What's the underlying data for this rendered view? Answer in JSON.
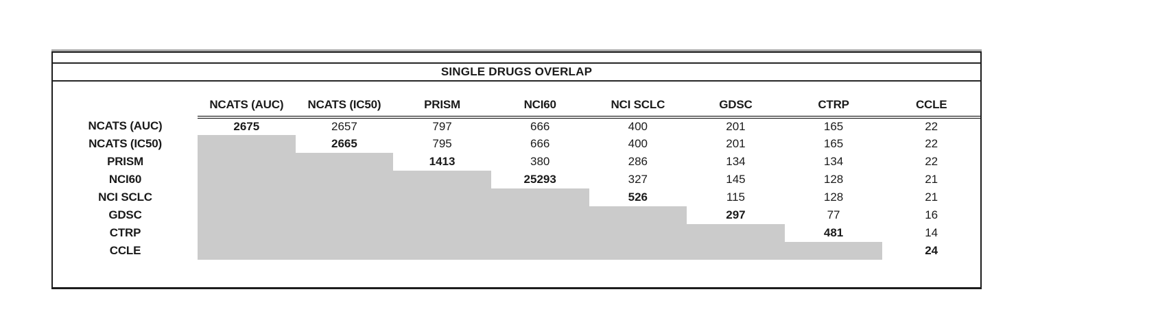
{
  "title": "SINGLE DRUGS OVERLAP",
  "chart_data": {
    "type": "table",
    "title": "SINGLE DRUGS OVERLAP",
    "description_of_layout": "upper-triangular pairwise overlap matrix; diagonal values bold; cells below the diagonal are blank and shaded gray",
    "labels": [
      "NCATS (AUC)",
      "NCATS (IC50)",
      "PRISM",
      "NCI60",
      "NCI SCLC",
      "GDSC",
      "CTRP",
      "CCLE"
    ],
    "matrix": [
      [
        2675,
        2657,
        797,
        666,
        400,
        201,
        165,
        22
      ],
      [
        null,
        2665,
        795,
        666,
        400,
        201,
        165,
        22
      ],
      [
        null,
        null,
        1413,
        380,
        286,
        134,
        134,
        22
      ],
      [
        null,
        null,
        null,
        25293,
        327,
        145,
        128,
        21
      ],
      [
        null,
        null,
        null,
        null,
        526,
        115,
        128,
        21
      ],
      [
        null,
        null,
        null,
        null,
        null,
        297,
        77,
        16
      ],
      [
        null,
        null,
        null,
        null,
        null,
        null,
        481,
        14
      ],
      [
        null,
        null,
        null,
        null,
        null,
        null,
        null,
        24
      ]
    ],
    "diagonal_bold": true,
    "lower_triangle_shaded": true
  },
  "colors": {
    "shaded_cell": "#cbcbcb",
    "border": "#000000",
    "text": "#1a1a1a",
    "top_accent_band": "#a8a8a8"
  }
}
